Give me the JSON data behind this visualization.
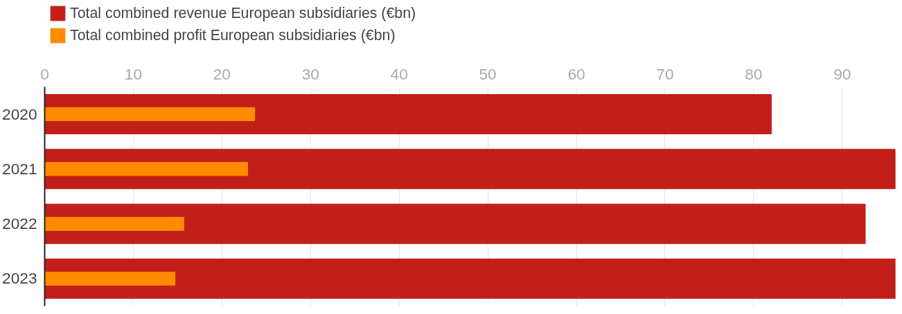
{
  "chart_data": {
    "type": "bar",
    "orientation": "horizontal",
    "categories": [
      "2020",
      "2021",
      "2022",
      "2023"
    ],
    "series": [
      {
        "name": "Total combined revenue European subsidiaries (€bn)",
        "color": "#c21f1a",
        "values": [
          82,
          96,
          92.6,
          96
        ]
      },
      {
        "name": "Total combined profit European subsidiaries (€bn)",
        "color": "#ff8c00",
        "values": [
          23.7,
          22.9,
          15.7,
          14.7
        ]
      }
    ],
    "xlim": [
      0,
      96
    ],
    "xticks": [
      0,
      10,
      20,
      30,
      40,
      50,
      60,
      70,
      80,
      90
    ],
    "grid": "x",
    "legend": "top left"
  }
}
